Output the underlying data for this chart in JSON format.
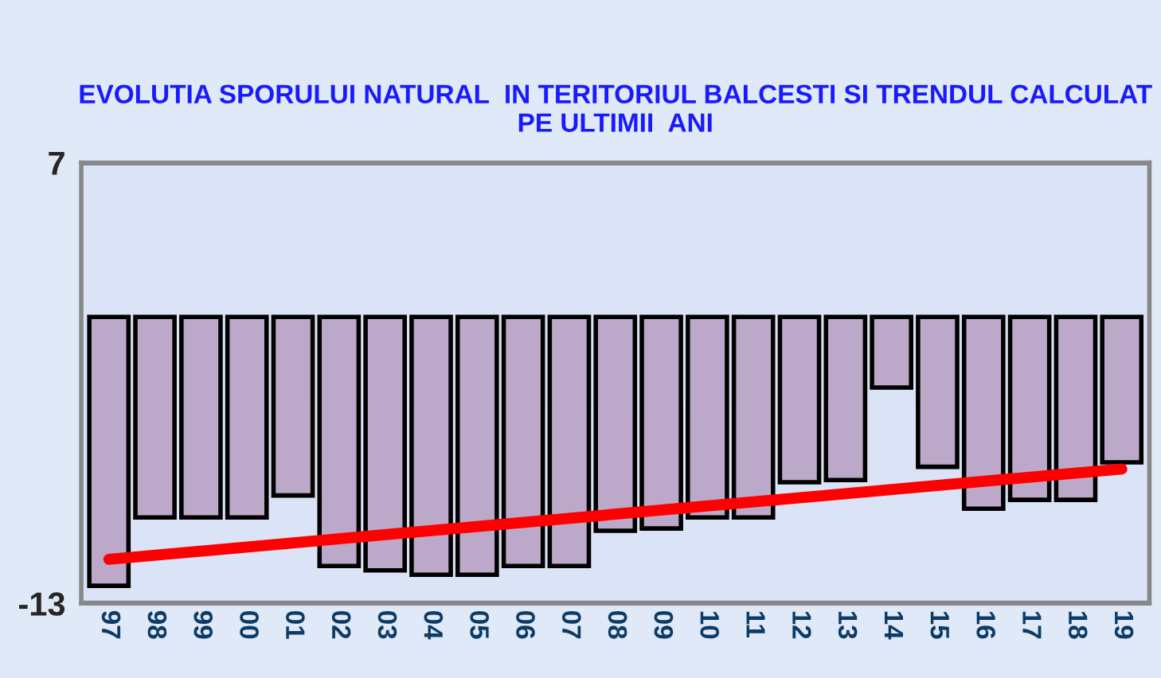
{
  "chart_data": {
    "type": "bar",
    "title": "EVOLUTIA SPORULUI NATURAL  IN TERITORIUL BALCESTI SI TRENDUL CALCULAT\nPE ULTIMII  ANI",
    "categories": [
      "97",
      "98",
      "99",
      "00",
      "01",
      "02",
      "03",
      "04",
      "05",
      "06",
      "07",
      "08",
      "09",
      "10",
      "11",
      "12",
      "13",
      "14",
      "15",
      "16",
      "17",
      "18",
      "19"
    ],
    "series": [
      {
        "color": "#bca8c8",
        "values": [
          -12.2,
          -9.1,
          -9.1,
          -9.1,
          -8.1,
          -11.3,
          -11.5,
          -11.7,
          -11.7,
          -11.3,
          -11.3,
          -9.7,
          -9.6,
          -9.1,
          -9.1,
          -7.5,
          -7.4,
          -3.2,
          -6.8,
          -8.7,
          -8.3,
          -8.3,
          -6.6
        ]
      },
      {
        "type": "line",
        "color": "#ff0000",
        "x": [
          "97",
          "19"
        ],
        "values": [
          -11.0,
          -6.9
        ]
      }
    ],
    "ylim": [
      -13,
      7
    ],
    "yticks": [
      -13,
      7
    ],
    "grid": "y",
    "legend": false
  }
}
